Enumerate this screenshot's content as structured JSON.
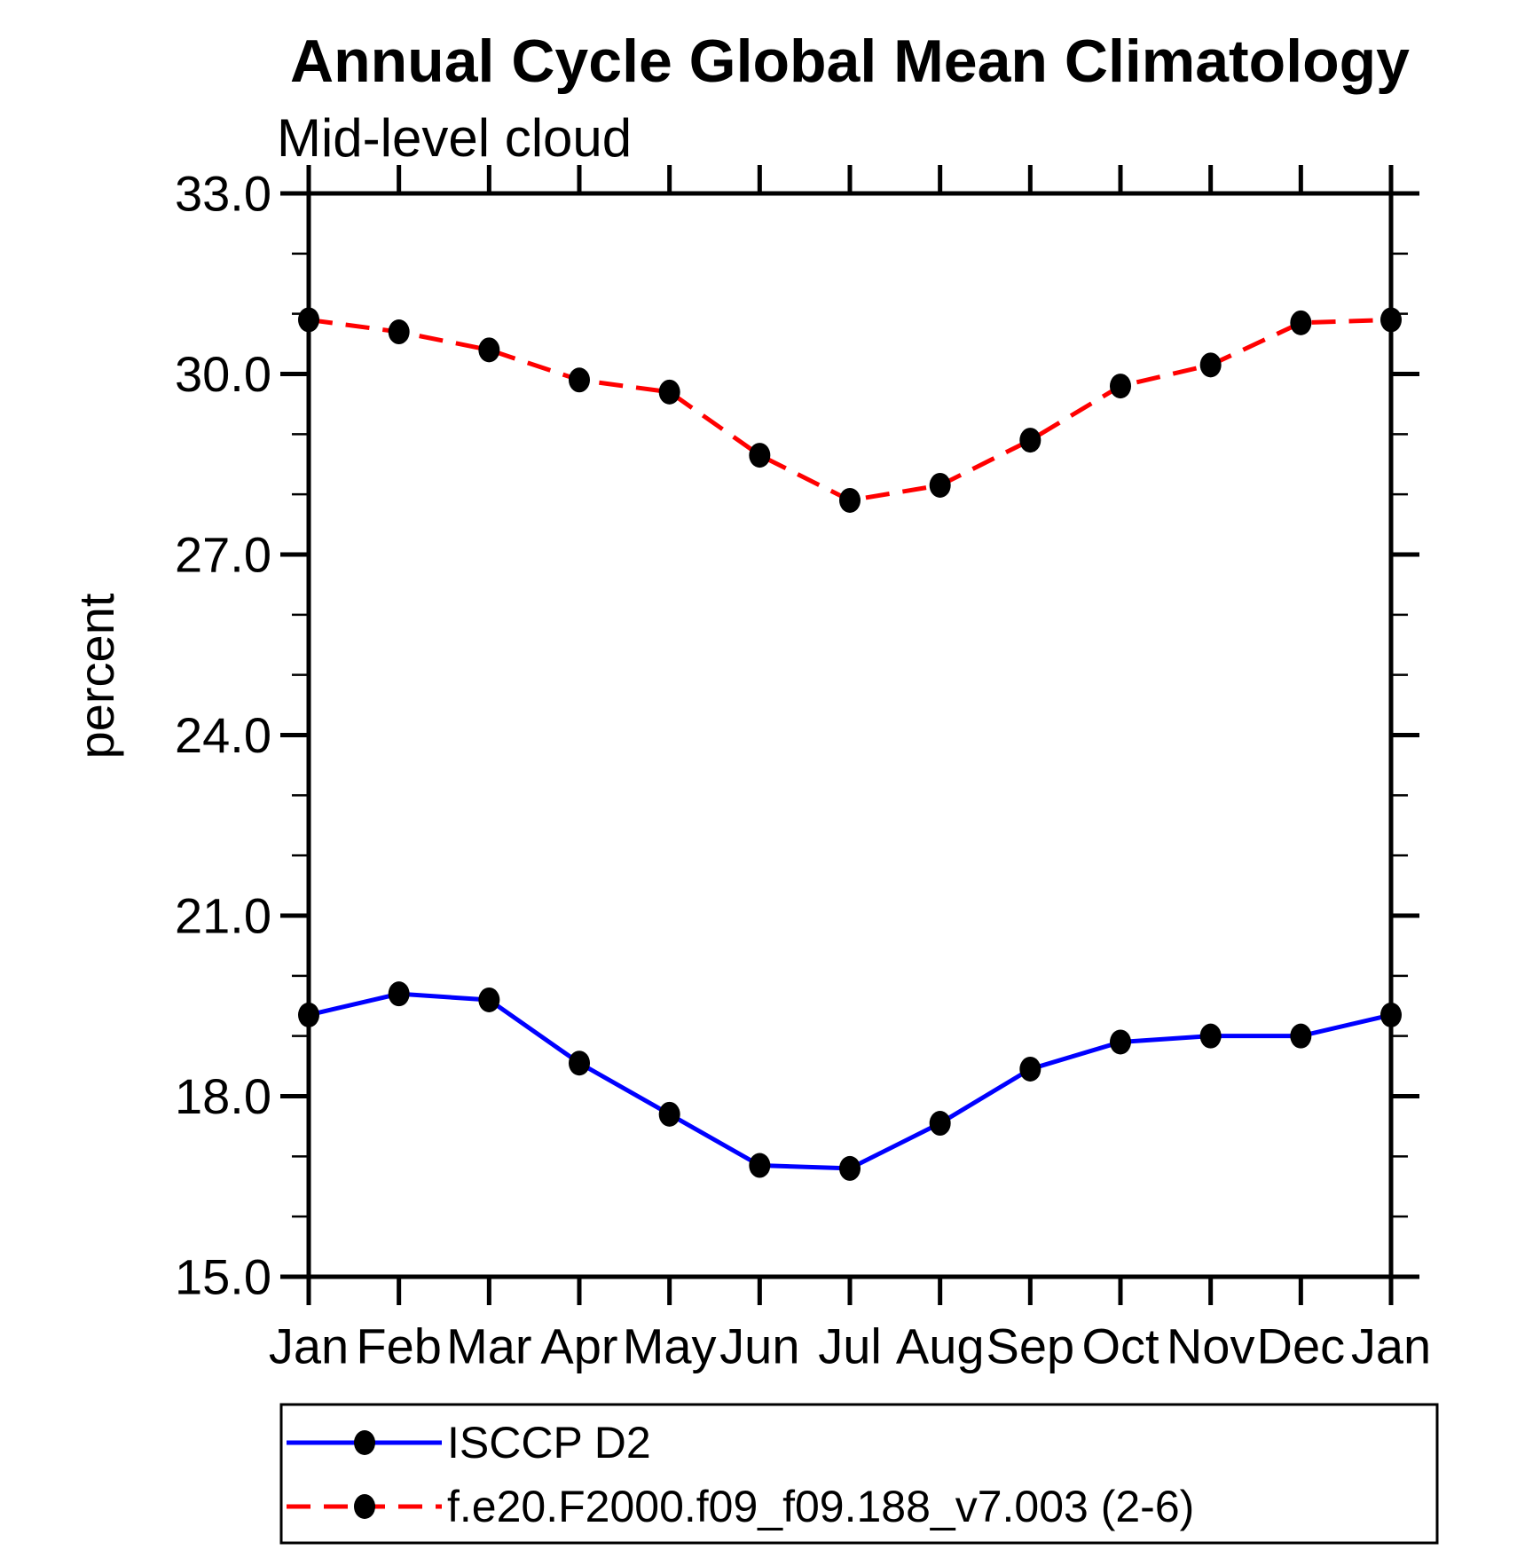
{
  "title": "Annual Cycle Global Mean Climatology",
  "subtitle": "Mid-level cloud",
  "chart_data": {
    "type": "line",
    "title": "Annual Cycle Global Mean Climatology",
    "subtitle": "Mid-level cloud",
    "xlabel": "",
    "ylabel": "percent",
    "ylim": [
      15.0,
      33.0
    ],
    "ytick_major_interval": 3.0,
    "ytick_minor_interval": 1.0,
    "ytick_labels": [
      "15.0",
      "18.0",
      "21.0",
      "24.0",
      "27.0",
      "30.0",
      "33.0"
    ],
    "categories": [
      "Jan",
      "Feb",
      "Mar",
      "Apr",
      "May",
      "Jun",
      "Jul",
      "Aug",
      "Sep",
      "Oct",
      "Nov",
      "Dec",
      "Jan"
    ],
    "grid": false,
    "legend_position": "bottom-left-box",
    "axis_color": "#000000",
    "marker_color": "#000000",
    "series": [
      {
        "name": "ISCCP D2",
        "color": "#0000ff",
        "line_style": "solid",
        "marker": "filled-circle",
        "values": [
          19.35,
          19.7,
          19.6,
          18.55,
          17.7,
          16.85,
          16.8,
          17.55,
          18.45,
          18.9,
          19.0,
          19.0,
          19.35
        ]
      },
      {
        "name": "f.e20.F2000.f09_f09.188_v7.003 (2-6)",
        "color": "#ff0000",
        "line_style": "dashed",
        "marker": "filled-circle",
        "values": [
          30.9,
          30.7,
          30.4,
          29.9,
          29.7,
          28.65,
          27.9,
          28.15,
          28.9,
          29.8,
          30.15,
          30.85,
          30.9
        ]
      }
    ]
  }
}
